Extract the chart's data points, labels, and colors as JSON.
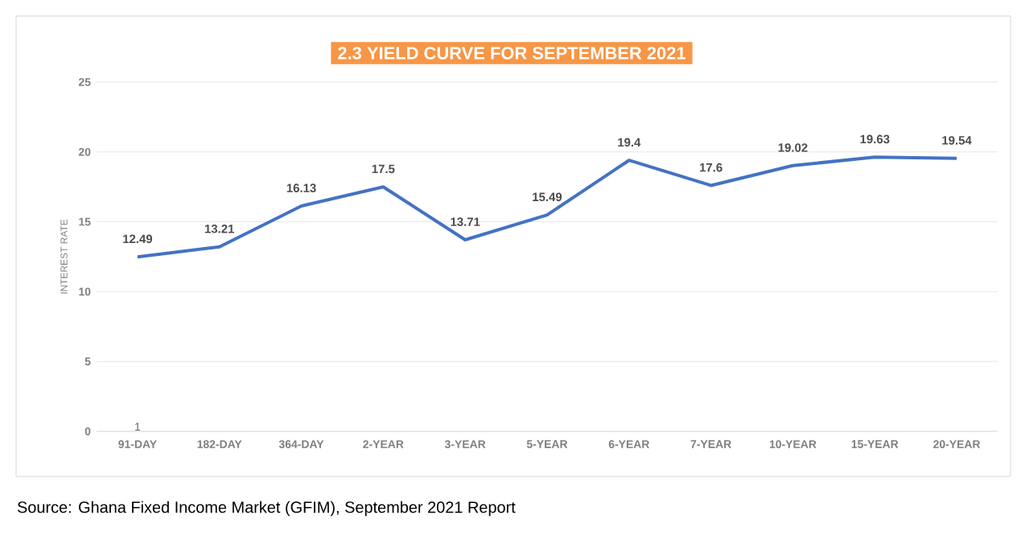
{
  "chart_data": {
    "type": "line",
    "title": "2.3 YIELD CURVE FOR  SEPTEMBER 2021",
    "ylabel": "INTEREST RATE",
    "categories": [
      "91-DAY",
      "182-DAY",
      "364-DAY",
      "2-YEAR",
      "3-YEAR",
      "5-YEAR",
      "6-YEAR",
      "7-YEAR",
      "10-YEAR",
      "15-YEAR",
      "20-YEAR"
    ],
    "values": [
      12.49,
      13.21,
      16.13,
      17.5,
      13.71,
      15.49,
      19.4,
      17.6,
      19.02,
      19.63,
      19.54
    ],
    "color": "#4472c4",
    "ylim": [
      0,
      25
    ],
    "yticks": [
      0,
      5,
      10,
      15,
      20,
      25
    ],
    "grid": "y",
    "data_labels": true,
    "marker": "none",
    "line_style": "solid",
    "annotations": [
      "1",
      "Source: Ghana Fixed Income Market (GFIM), September 2021 Report"
    ]
  }
}
